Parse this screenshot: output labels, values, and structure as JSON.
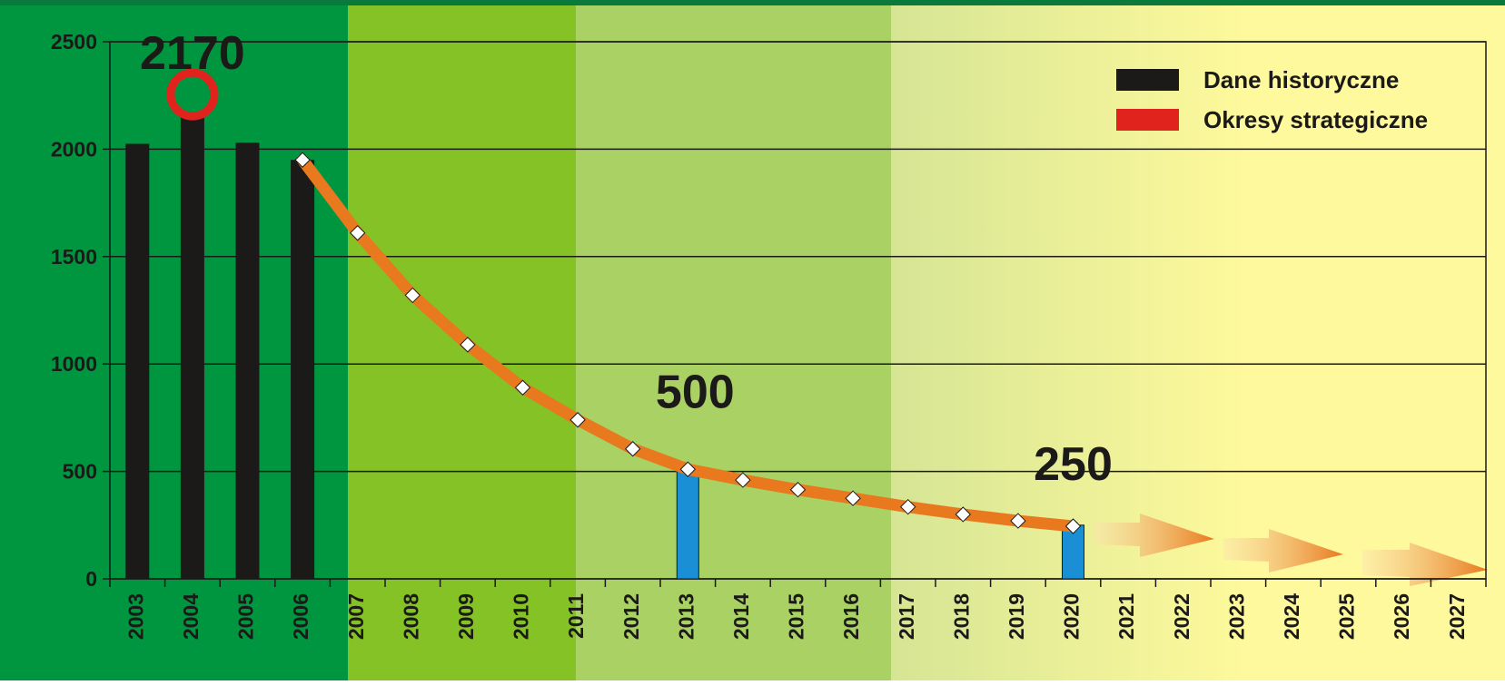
{
  "chart_data": {
    "type": "bar",
    "categories": [
      "2003",
      "2004",
      "2005",
      "2006",
      "2007",
      "2008",
      "2009",
      "2010",
      "2011",
      "2012",
      "2013",
      "2014",
      "2015",
      "2016",
      "2017",
      "2018",
      "2019",
      "2020",
      "2021",
      "2022",
      "2023",
      "2024",
      "2025",
      "2026",
      "2027"
    ],
    "series": [
      {
        "name": "Dane historyczne",
        "color": "#1c1a19",
        "values": [
          2025,
          2170,
          2030,
          1950,
          null,
          null,
          null,
          null,
          null,
          null,
          null,
          null,
          null,
          null,
          null,
          null,
          null,
          null,
          null,
          null,
          null,
          null,
          null,
          null,
          null
        ]
      },
      {
        "name": "Okresy strategiczne",
        "color": "#e0231d",
        "bar_color": "#1a8fd6",
        "values": [
          null,
          2170,
          null,
          null,
          null,
          null,
          null,
          null,
          null,
          null,
          500,
          null,
          null,
          null,
          null,
          null,
          null,
          250,
          null,
          null,
          null,
          null,
          null,
          null,
          null
        ]
      }
    ],
    "line": {
      "color": "#e8791f",
      "values": [
        null,
        null,
        null,
        1950,
        1610,
        1320,
        1090,
        890,
        740,
        605,
        510,
        460,
        415,
        375,
        335,
        300,
        270,
        245,
        null,
        null,
        null,
        null,
        null,
        null,
        null
      ]
    },
    "ylim": [
      0,
      2500
    ],
    "yticks": [
      0,
      500,
      1000,
      1500,
      2000,
      2500
    ],
    "grid": true,
    "legend": "upper right"
  }
}
